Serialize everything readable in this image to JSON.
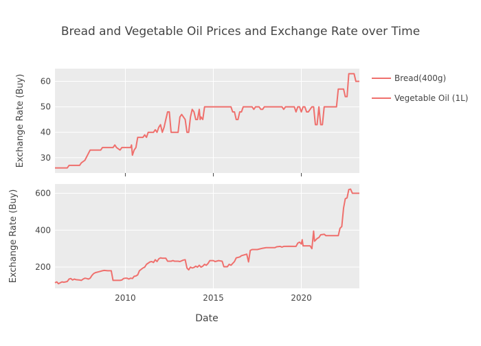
{
  "chart_data": {
    "type": "line",
    "title": "Bread and Vegetable Oil Prices and Exchange Rate over Time",
    "xlabel": "Date",
    "x_ticks": [
      "2010",
      "2015",
      "2020"
    ],
    "x_range": [
      2006.0,
      2023.3
    ],
    "line_color": "#ef6f6c",
    "legend": {
      "placement": "top-right",
      "entries": [
        "Bread(400g)",
        "Vegetable Oil (1L)"
      ]
    },
    "panels": [
      {
        "series": "Bread(400g)",
        "ylabel": "Exchange Rate (Buy)",
        "ylim": [
          24,
          65
        ],
        "y_ticks": [
          30,
          40,
          50,
          60
        ],
        "points": [
          [
            2006.0,
            26
          ],
          [
            2006.7,
            26
          ],
          [
            2006.8,
            27
          ],
          [
            2007.4,
            27
          ],
          [
            2007.5,
            28
          ],
          [
            2007.7,
            29
          ],
          [
            2008.0,
            33
          ],
          [
            2008.6,
            33
          ],
          [
            2008.7,
            34
          ],
          [
            2009.3,
            34
          ],
          [
            2009.4,
            35
          ],
          [
            2009.5,
            34
          ],
          [
            2009.7,
            33
          ],
          [
            2009.8,
            34
          ],
          [
            2010.3,
            34
          ],
          [
            2010.35,
            35
          ],
          [
            2010.4,
            31
          ],
          [
            2010.5,
            33
          ],
          [
            2010.6,
            34
          ],
          [
            2010.7,
            38
          ],
          [
            2011.0,
            38
          ],
          [
            2011.1,
            39
          ],
          [
            2011.2,
            38
          ],
          [
            2011.3,
            40
          ],
          [
            2011.6,
            40
          ],
          [
            2011.7,
            41
          ],
          [
            2011.8,
            40
          ],
          [
            2011.9,
            42
          ],
          [
            2012.0,
            43
          ],
          [
            2012.1,
            40
          ],
          [
            2012.2,
            42
          ],
          [
            2012.3,
            45
          ],
          [
            2012.4,
            48
          ],
          [
            2012.5,
            48
          ],
          [
            2012.6,
            40
          ],
          [
            2013.0,
            40
          ],
          [
            2013.1,
            46
          ],
          [
            2013.2,
            47
          ],
          [
            2013.4,
            45
          ],
          [
            2013.5,
            40
          ],
          [
            2013.6,
            40
          ],
          [
            2013.7,
            46
          ],
          [
            2013.8,
            49
          ],
          [
            2013.9,
            48
          ],
          [
            2014.0,
            45
          ],
          [
            2014.1,
            45
          ],
          [
            2014.2,
            49
          ],
          [
            2014.25,
            45
          ],
          [
            2014.3,
            46
          ],
          [
            2014.4,
            45
          ],
          [
            2014.5,
            50
          ],
          [
            2016.0,
            50
          ],
          [
            2016.1,
            48
          ],
          [
            2016.2,
            48
          ],
          [
            2016.3,
            45
          ],
          [
            2016.4,
            45
          ],
          [
            2016.5,
            48
          ],
          [
            2016.6,
            48
          ],
          [
            2016.7,
            50
          ],
          [
            2017.2,
            50
          ],
          [
            2017.3,
            49
          ],
          [
            2017.4,
            50
          ],
          [
            2017.6,
            50
          ],
          [
            2017.7,
            49
          ],
          [
            2017.8,
            49
          ],
          [
            2017.9,
            50
          ],
          [
            2018.9,
            50
          ],
          [
            2019.0,
            49
          ],
          [
            2019.1,
            50
          ],
          [
            2019.6,
            50
          ],
          [
            2019.7,
            48
          ],
          [
            2019.8,
            50
          ],
          [
            2019.9,
            50
          ],
          [
            2020.0,
            48
          ],
          [
            2020.1,
            50
          ],
          [
            2020.2,
            50
          ],
          [
            2020.3,
            48
          ],
          [
            2020.4,
            48
          ],
          [
            2020.5,
            49
          ],
          [
            2020.6,
            50
          ],
          [
            2020.7,
            50
          ],
          [
            2020.8,
            43
          ],
          [
            2020.9,
            43
          ],
          [
            2021.0,
            50
          ],
          [
            2021.1,
            43
          ],
          [
            2021.2,
            43
          ],
          [
            2021.3,
            50
          ],
          [
            2022.0,
            50
          ],
          [
            2022.1,
            57
          ],
          [
            2022.4,
            57
          ],
          [
            2022.5,
            54
          ],
          [
            2022.6,
            54
          ],
          [
            2022.7,
            63
          ],
          [
            2023.0,
            63
          ],
          [
            2023.1,
            60
          ],
          [
            2023.3,
            60
          ]
        ]
      },
      {
        "series": "Vegetable Oil (1L)",
        "ylabel": "Exchange Rate (Buy)",
        "ylim": [
          85,
          650
        ],
        "y_ticks": [
          200,
          400,
          600
        ],
        "points": [
          [
            2006.0,
            115
          ],
          [
            2006.1,
            120
          ],
          [
            2006.2,
            110
          ],
          [
            2006.3,
            115
          ],
          [
            2006.4,
            120
          ],
          [
            2006.5,
            118
          ],
          [
            2006.6,
            120
          ],
          [
            2006.7,
            122
          ],
          [
            2006.8,
            135
          ],
          [
            2006.9,
            138
          ],
          [
            2007.0,
            130
          ],
          [
            2007.1,
            135
          ],
          [
            2007.2,
            132
          ],
          [
            2007.4,
            130
          ],
          [
            2007.5,
            128
          ],
          [
            2007.6,
            135
          ],
          [
            2007.7,
            140
          ],
          [
            2007.8,
            138
          ],
          [
            2007.9,
            135
          ],
          [
            2008.0,
            140
          ],
          [
            2008.1,
            155
          ],
          [
            2008.2,
            165
          ],
          [
            2008.3,
            170
          ],
          [
            2008.5,
            175
          ],
          [
            2008.7,
            180
          ],
          [
            2008.8,
            182
          ],
          [
            2009.0,
            180
          ],
          [
            2009.2,
            180
          ],
          [
            2009.3,
            128
          ],
          [
            2009.7,
            128
          ],
          [
            2009.8,
            130
          ],
          [
            2009.9,
            138
          ],
          [
            2010.0,
            140
          ],
          [
            2010.1,
            140
          ],
          [
            2010.2,
            135
          ],
          [
            2010.3,
            140
          ],
          [
            2010.4,
            138
          ],
          [
            2010.5,
            150
          ],
          [
            2010.6,
            152
          ],
          [
            2010.7,
            158
          ],
          [
            2010.8,
            180
          ],
          [
            2011.0,
            195
          ],
          [
            2011.1,
            200
          ],
          [
            2011.2,
            215
          ],
          [
            2011.4,
            228
          ],
          [
            2011.5,
            230
          ],
          [
            2011.6,
            225
          ],
          [
            2011.7,
            240
          ],
          [
            2011.8,
            230
          ],
          [
            2011.9,
            245
          ],
          [
            2012.0,
            250
          ],
          [
            2012.1,
            248
          ],
          [
            2012.3,
            248
          ],
          [
            2012.4,
            232
          ],
          [
            2012.6,
            232
          ],
          [
            2012.7,
            235
          ],
          [
            2012.8,
            232
          ],
          [
            2013.0,
            232
          ],
          [
            2013.1,
            230
          ],
          [
            2013.3,
            238
          ],
          [
            2013.4,
            240
          ],
          [
            2013.5,
            195
          ],
          [
            2013.6,
            185
          ],
          [
            2013.7,
            200
          ],
          [
            2013.8,
            195
          ],
          [
            2013.9,
            198
          ],
          [
            2014.0,
            205
          ],
          [
            2014.1,
            200
          ],
          [
            2014.2,
            210
          ],
          [
            2014.3,
            200
          ],
          [
            2014.4,
            205
          ],
          [
            2014.5,
            215
          ],
          [
            2014.6,
            210
          ],
          [
            2014.7,
            220
          ],
          [
            2014.8,
            235
          ],
          [
            2015.0,
            235
          ],
          [
            2015.1,
            230
          ],
          [
            2015.3,
            235
          ],
          [
            2015.5,
            232
          ],
          [
            2015.6,
            202
          ],
          [
            2015.8,
            202
          ],
          [
            2015.9,
            215
          ],
          [
            2016.0,
            210
          ],
          [
            2016.2,
            230
          ],
          [
            2016.3,
            250
          ],
          [
            2016.5,
            255
          ],
          [
            2016.6,
            262
          ],
          [
            2016.9,
            270
          ],
          [
            2017.0,
            228
          ],
          [
            2017.1,
            290
          ],
          [
            2017.2,
            295
          ],
          [
            2017.5,
            295
          ],
          [
            2017.8,
            302
          ],
          [
            2018.0,
            305
          ],
          [
            2018.5,
            305
          ],
          [
            2018.6,
            310
          ],
          [
            2018.8,
            312
          ],
          [
            2018.9,
            308
          ],
          [
            2019.0,
            312
          ],
          [
            2019.3,
            313
          ],
          [
            2019.7,
            312
          ],
          [
            2019.8,
            330
          ],
          [
            2019.9,
            335
          ],
          [
            2020.0,
            325
          ],
          [
            2020.05,
            348
          ],
          [
            2020.1,
            315
          ],
          [
            2020.5,
            315
          ],
          [
            2020.6,
            300
          ],
          [
            2020.7,
            395
          ],
          [
            2020.75,
            340
          ],
          [
            2020.9,
            355
          ],
          [
            2021.0,
            360
          ],
          [
            2021.1,
            375
          ],
          [
            2021.3,
            378
          ],
          [
            2021.4,
            370
          ],
          [
            2022.1,
            370
          ],
          [
            2022.2,
            410
          ],
          [
            2022.3,
            420
          ],
          [
            2022.4,
            520
          ],
          [
            2022.5,
            570
          ],
          [
            2022.6,
            575
          ],
          [
            2022.7,
            620
          ],
          [
            2022.8,
            622
          ],
          [
            2022.9,
            600
          ],
          [
            2023.3,
            600
          ]
        ]
      }
    ]
  }
}
